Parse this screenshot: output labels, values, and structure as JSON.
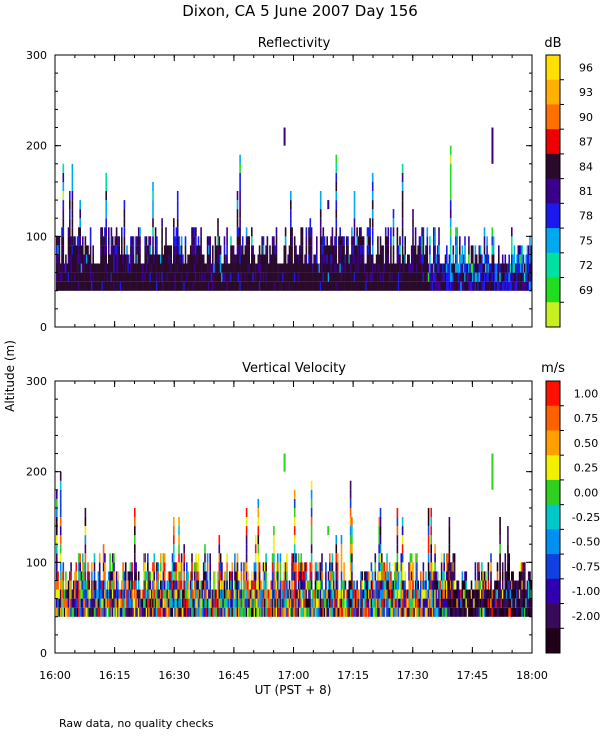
{
  "title": "Dixon, CA   5 June 2007   Day 156",
  "y_axis_label": "Altitude (m)",
  "x_axis_label": "UT  (PST + 8)",
  "footnote": "Raw data, no quality checks",
  "chart_data": [
    {
      "type": "heatmap",
      "title": "Reflectivity",
      "xlabel": "UT  (PST + 8)",
      "ylabel": "Altitude (m)",
      "xlim": [
        960,
        1080
      ],
      "ylim": [
        0,
        300
      ],
      "x_ticks": [
        960,
        975,
        990,
        1005,
        1020,
        1035,
        1050,
        1065,
        1080
      ],
      "x_tick_labels": [
        "16:00",
        "16:15",
        "16:30",
        "16:45",
        "17:00",
        "17:15",
        "17:30",
        "17:45",
        "18:00"
      ],
      "y_ticks": [
        0,
        100,
        200,
        300
      ],
      "y_tick_labels": [
        "0",
        "100",
        "200",
        "300"
      ],
      "colorbar": {
        "unit": "dB",
        "labels": [
          "96",
          "93",
          "90",
          "87",
          "84",
          "81",
          "78",
          "75",
          "72",
          "69"
        ],
        "colors": [
          "#ffe000",
          "#ffb000",
          "#ff7000",
          "#ee0000",
          "#2a0a2a",
          "#3a008a",
          "#1a1aee",
          "#00a8f0",
          "#00e0a0",
          "#20dd20",
          "#c8f020"
        ]
      },
      "echo_base_m": 40,
      "gap_altitudes_m": [
        20,
        30
      ]
    },
    {
      "type": "heatmap",
      "title": "Vertical Velocity",
      "xlabel": "UT  (PST + 8)",
      "ylabel": "Altitude (m)",
      "xlim": [
        960,
        1080
      ],
      "ylim": [
        0,
        300
      ],
      "x_ticks": [
        960,
        975,
        990,
        1005,
        1020,
        1035,
        1050,
        1065,
        1080
      ],
      "x_tick_labels": [
        "16:00",
        "16:15",
        "16:30",
        "16:45",
        "17:00",
        "17:15",
        "17:30",
        "17:45",
        "18:00"
      ],
      "y_ticks": [
        0,
        100,
        200,
        300
      ],
      "y_tick_labels": [
        "0",
        "100",
        "200",
        "300"
      ],
      "colorbar": {
        "unit": "m/s",
        "labels": [
          "1.00",
          "0.75",
          "0.50",
          "0.25",
          "0.00",
          "-0.25",
          "-0.50",
          "-0.75",
          "-1.00",
          "-2.00"
        ],
        "colors": [
          "#ff1000",
          "#ff6000",
          "#ffa000",
          "#f0f000",
          "#30d020",
          "#00c8c8",
          "#0090f0",
          "#1040e0",
          "#3000b0",
          "#3a0a5a",
          "#200018"
        ]
      },
      "echo_base_m": 40,
      "gap_altitudes_m": [
        20,
        30
      ]
    }
  ]
}
